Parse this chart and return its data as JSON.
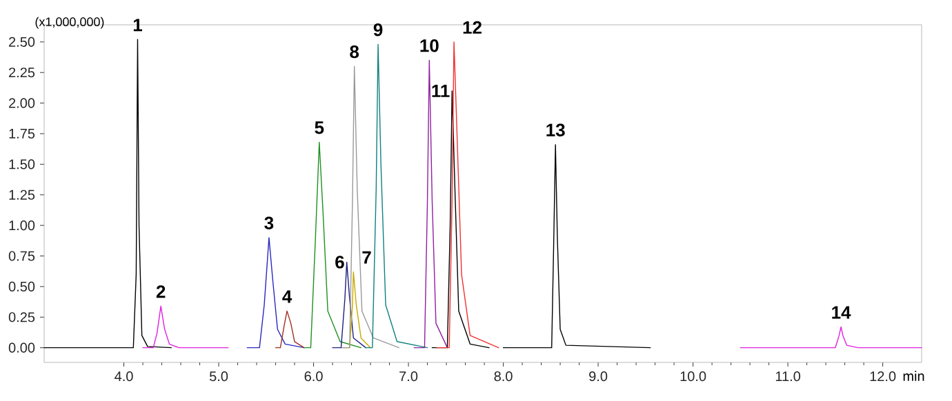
{
  "chart_data": {
    "type": "line",
    "ylabel": "(x1,000,000)",
    "xlabel": "min",
    "xlim": [
      3.16,
      12.41
    ],
    "ylim": [
      -0.12,
      2.64
    ],
    "xticks": [
      {
        "value": 4,
        "label": "4.0"
      },
      {
        "value": 5,
        "label": "5.0"
      },
      {
        "value": 6,
        "label": "6.0"
      },
      {
        "value": 7,
        "label": "7.0"
      },
      {
        "value": 8,
        "label": "8.0"
      },
      {
        "value": 9,
        "label": "9.0"
      },
      {
        "value": 10,
        "label": "10.0"
      },
      {
        "value": 11,
        "label": "11.0"
      },
      {
        "value": 12,
        "label": "12.0"
      }
    ],
    "yticks": [
      {
        "value": 0,
        "label": "0.00"
      },
      {
        "value": 0.25,
        "label": "0.25"
      },
      {
        "value": 0.5,
        "label": "0.50"
      },
      {
        "value": 0.75,
        "label": "0.75"
      },
      {
        "value": 1,
        "label": "1.00"
      },
      {
        "value": 1.25,
        "label": "1.25"
      },
      {
        "value": 1.5,
        "label": "1.50"
      },
      {
        "value": 1.75,
        "label": "1.75"
      },
      {
        "value": 2,
        "label": "2.00"
      },
      {
        "value": 2.25,
        "label": "2.25"
      },
      {
        "value": 2.5,
        "label": "2.50"
      }
    ],
    "grid": false,
    "marker": "none",
    "line_style": "solid",
    "series": [
      {
        "color": "#000000",
        "x": [
          3.16,
          3.97,
          4.1,
          4.13,
          4.145,
          4.16,
          4.19,
          4.25,
          4.5
        ],
        "values": [
          0,
          0,
          0,
          0.6,
          2.52,
          1.0,
          0.1,
          0.01,
          0
        ]
      },
      {
        "color": "#e020e0",
        "x": [
          4.2,
          4.31,
          4.35,
          4.39,
          4.43,
          4.48,
          4.58,
          5.1
        ],
        "values": [
          0,
          0,
          0.12,
          0.34,
          0.15,
          0.03,
          0,
          0
        ]
      },
      {
        "color": "#2828c0",
        "x": [
          5.3,
          5.43,
          5.48,
          5.53,
          5.57,
          5.62,
          5.7,
          5.9
        ],
        "values": [
          0,
          0,
          0.35,
          0.9,
          0.55,
          0.15,
          0.03,
          0
        ]
      },
      {
        "color": "#a03020",
        "x": [
          5.6,
          5.65,
          5.69,
          5.72,
          5.76,
          5.8,
          5.9
        ],
        "values": [
          0,
          0,
          0.18,
          0.3,
          0.2,
          0.05,
          0
        ]
      },
      {
        "color": "#209020",
        "x": [
          5.9,
          5.97,
          6.02,
          6.06,
          6.1,
          6.15,
          6.28,
          6.5
        ],
        "values": [
          0,
          0,
          0.9,
          1.68,
          1.1,
          0.3,
          0.05,
          0
        ]
      },
      {
        "color": "#202080",
        "x": [
          6.2,
          6.29,
          6.33,
          6.35,
          6.38,
          6.42,
          6.55
        ],
        "values": [
          0,
          0,
          0.4,
          0.7,
          0.4,
          0.08,
          0
        ]
      },
      {
        "color": "#c8a800",
        "x": [
          6.3,
          6.38,
          6.41,
          6.42,
          6.45,
          6.5,
          6.6
        ],
        "values": [
          0,
          0,
          0.35,
          0.62,
          0.35,
          0.08,
          0
        ]
      },
      {
        "color": "#999999",
        "x": [
          6.3,
          6.38,
          6.41,
          6.43,
          6.46,
          6.51,
          6.63,
          6.9
        ],
        "values": [
          0,
          0,
          1.2,
          2.3,
          1.3,
          0.3,
          0.08,
          0
        ]
      },
      {
        "color": "#108080",
        "x": [
          6.55,
          6.62,
          6.66,
          6.68,
          6.71,
          6.76,
          6.88,
          7.2
        ],
        "values": [
          0,
          0,
          1.3,
          2.48,
          1.5,
          0.35,
          0.05,
          0
        ]
      },
      {
        "color": "#9020a0",
        "x": [
          7.06,
          7.17,
          7.2,
          7.22,
          7.25,
          7.29,
          7.41
        ],
        "values": [
          0,
          0,
          1.2,
          2.35,
          1.2,
          0.2,
          0
        ]
      },
      {
        "color": "#000000",
        "x": [
          7.25,
          7.41,
          7.44,
          7.46,
          7.49,
          7.53,
          7.65,
          7.85
        ],
        "values": [
          0,
          0,
          1.0,
          2.1,
          1.3,
          0.3,
          0.03,
          0
        ]
      },
      {
        "color": "#f03030",
        "x": [
          7.3,
          7.43,
          7.46,
          7.48,
          7.51,
          7.56,
          7.65,
          7.95
        ],
        "values": [
          0,
          0,
          1.2,
          2.5,
          1.8,
          0.6,
          0.1,
          0
        ]
      },
      {
        "color": "#000000",
        "x": [
          8.0,
          8.51,
          8.53,
          8.55,
          8.57,
          8.6,
          8.66,
          9.55
        ],
        "values": [
          0,
          0,
          0.8,
          1.66,
          0.9,
          0.15,
          0.02,
          0
        ]
      },
      {
        "color": "#e020e0",
        "x": [
          10.5,
          11.5,
          11.54,
          11.56,
          11.58,
          11.62,
          11.74,
          12.41
        ],
        "values": [
          0,
          0,
          0.1,
          0.17,
          0.1,
          0.02,
          0,
          0
        ]
      }
    ],
    "annotations": [
      {
        "text": "1",
        "x": 4.145,
        "y": 2.52
      },
      {
        "text": "2",
        "x": 4.39,
        "y": 0.34
      },
      {
        "text": "3",
        "x": 5.53,
        "y": 0.9
      },
      {
        "text": "4",
        "x": 5.72,
        "y": 0.3
      },
      {
        "text": "5",
        "x": 6.06,
        "y": 1.68
      },
      {
        "text": "6",
        "x": 6.35,
        "y": 0.7
      },
      {
        "text": "7",
        "x": 6.42,
        "y": 0.62
      },
      {
        "text": "8",
        "x": 6.43,
        "y": 2.3
      },
      {
        "text": "9",
        "x": 6.68,
        "y": 2.48
      },
      {
        "text": "10",
        "x": 7.22,
        "y": 2.35
      },
      {
        "text": "11",
        "x": 7.46,
        "y": 2.1
      },
      {
        "text": "12",
        "x": 7.48,
        "y": 2.5
      },
      {
        "text": "13",
        "x": 8.55,
        "y": 1.66
      },
      {
        "text": "14",
        "x": 11.56,
        "y": 0.17
      }
    ]
  }
}
